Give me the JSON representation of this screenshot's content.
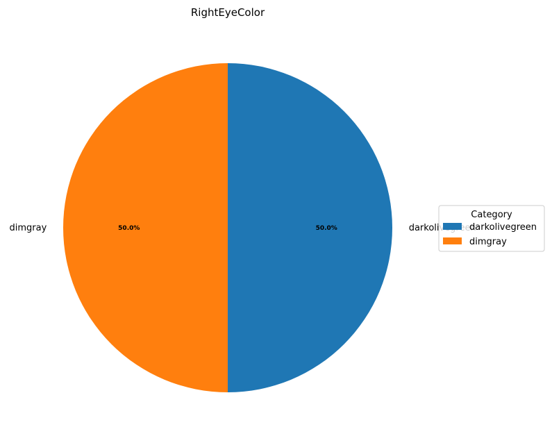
{
  "chart_data": {
    "type": "pie",
    "title": "RightEyeColor",
    "categories": [
      "darkolivegreen",
      "dimgray"
    ],
    "values": [
      50.0,
      50.0
    ],
    "percent_labels": [
      "50.0%",
      "50.0%"
    ],
    "colors": [
      "#1f77b4",
      "#ff7f0e"
    ],
    "legend": {
      "title": "Category",
      "entries": [
        "darkolivegreen",
        "dimgray"
      ],
      "placement": "right"
    }
  }
}
